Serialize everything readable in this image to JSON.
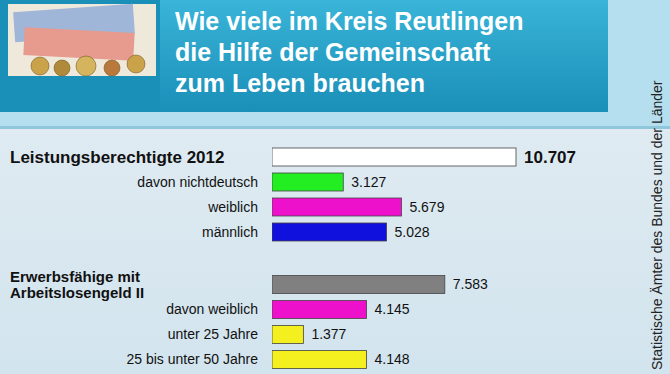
{
  "chart_data": {
    "type": "bar",
    "orientation": "horizontal",
    "title": "Wie viele im Kreis Reutlingen\ndie Hilfe der Gemeinschaft\nzum Leben brauchen",
    "source": "Statistische Ämter des Bundes und der Länder",
    "categories": [
      "Leistungsberechtigte 2012",
      "davon nichtdeutsch",
      "weiblich",
      "männlich",
      "Erwerbsfähige mit Arbeitslosengeld II",
      "davon weiblich",
      "unter 25 Jahre",
      "25 bis unter 50 Jahre"
    ],
    "values": [
      10707,
      3127,
      5679,
      5028,
      7583,
      4145,
      1377,
      4148
    ],
    "value_labels": [
      "10.707",
      "3.127",
      "5.679",
      "5.028",
      "7.583",
      "4.145",
      "1.377",
      "4.148"
    ],
    "colors": [
      "#ffffff",
      "#22ee22",
      "#ee11cc",
      "#1111dd",
      "#808080",
      "#ee11cc",
      "#f4f020",
      "#f4f020"
    ],
    "data_labels": true,
    "tick_labels": false,
    "grid": false
  }
}
